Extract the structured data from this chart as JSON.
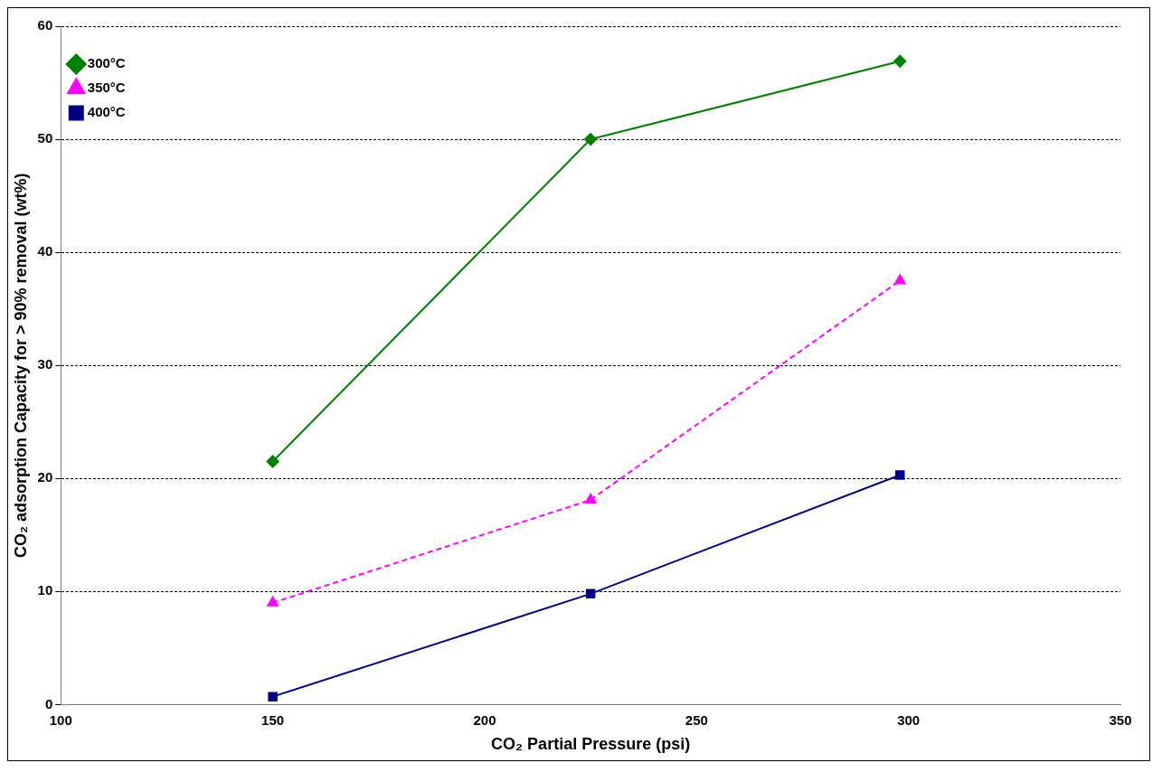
{
  "chart_data": {
    "type": "line",
    "xlabel": "CO₂ Partial Pressure (psi)",
    "ylabel": "CO₂ adsorption Capacity for > 90% removal (wt%)",
    "x": [
      150,
      225,
      298
    ],
    "series": [
      {
        "name": "300°C",
        "color": "#008000",
        "values": [
          21.5,
          50,
          56.9
        ],
        "marker": "diamond",
        "line_style": "solid"
      },
      {
        "name": "350°C",
        "color": "#ff00ff",
        "values": [
          9,
          18.1,
          37.5
        ],
        "marker": "triangle",
        "line_style": "dashed"
      },
      {
        "name": "400°C",
        "color": "#000080",
        "values": [
          0.7,
          9.8,
          20.3
        ],
        "marker": "square",
        "line_style": "solid"
      }
    ],
    "xlim": [
      100,
      350
    ],
    "xticks": [
      100,
      150,
      200,
      250,
      300,
      350
    ],
    "ylim": [
      0,
      60
    ],
    "yticks": [
      0,
      10,
      20,
      30,
      40,
      50,
      60
    ],
    "grid": "y",
    "legend": "top left"
  }
}
